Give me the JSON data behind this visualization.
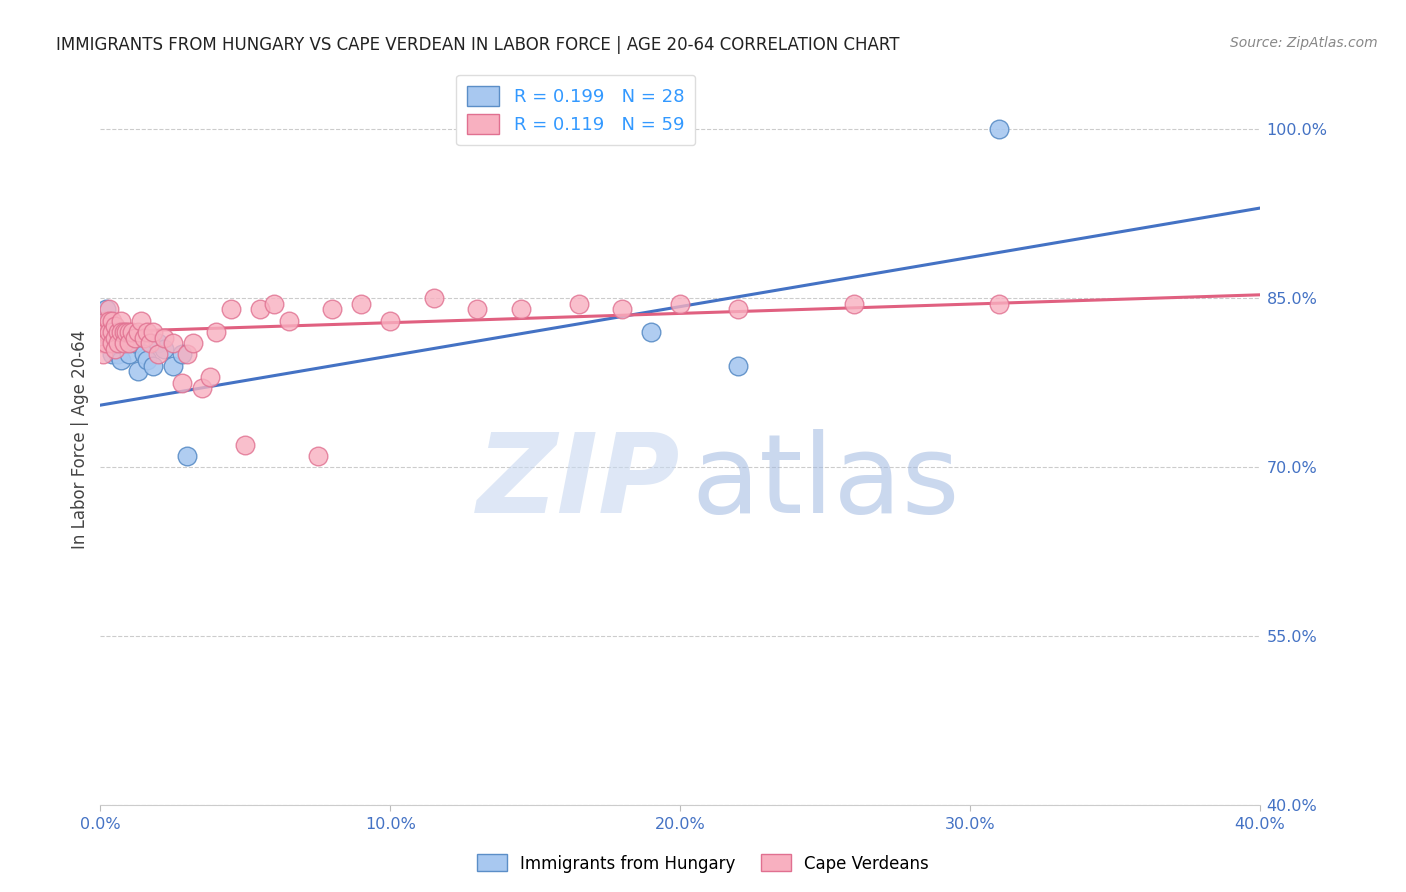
{
  "title": "IMMIGRANTS FROM HUNGARY VS CAPE VERDEAN IN LABOR FORCE | AGE 20-64 CORRELATION CHART",
  "source_text": "Source: ZipAtlas.com",
  "ylabel": "In Labor Force | Age 20-64",
  "xlim": [
    0.0,
    0.4
  ],
  "ylim": [
    0.4,
    1.05
  ],
  "ytick_values": [
    0.4,
    0.55,
    0.7,
    0.85,
    1.0
  ],
  "xtick_values": [
    0.0,
    0.1,
    0.2,
    0.3,
    0.4
  ],
  "hungary_color": "#a8c8f0",
  "hungary_edge_color": "#5b8ec7",
  "cape_verde_color": "#f8b0c0",
  "cape_verde_edge_color": "#e07090",
  "hungary_R": 0.199,
  "hungary_N": 28,
  "cape_verde_R": 0.119,
  "cape_verde_N": 59,
  "line_hungary_color": "#4472c4",
  "line_cape_verde_color": "#e06080",
  "legend_r_color": "#3399ff",
  "legend_n_color": "#3399ff",
  "tick_color": "#4472c4",
  "watermark_zip_color": "#c8d8f0",
  "watermark_atlas_color": "#a0b8e0",
  "hungary_x": [
    0.001,
    0.002,
    0.003,
    0.003,
    0.004,
    0.004,
    0.005,
    0.005,
    0.006,
    0.006,
    0.007,
    0.008,
    0.009,
    0.01,
    0.01,
    0.012,
    0.013,
    0.015,
    0.016,
    0.018,
    0.02,
    0.022,
    0.025,
    0.028,
    0.03,
    0.19,
    0.22,
    0.31
  ],
  "hungary_y": [
    0.82,
    0.84,
    0.815,
    0.825,
    0.8,
    0.81,
    0.82,
    0.815,
    0.81,
    0.8,
    0.795,
    0.81,
    0.815,
    0.81,
    0.8,
    0.81,
    0.785,
    0.8,
    0.795,
    0.79,
    0.81,
    0.805,
    0.79,
    0.8,
    0.71,
    0.82,
    0.79,
    1.0
  ],
  "cape_verde_x": [
    0.001,
    0.001,
    0.001,
    0.002,
    0.002,
    0.002,
    0.003,
    0.003,
    0.003,
    0.004,
    0.004,
    0.004,
    0.005,
    0.005,
    0.005,
    0.006,
    0.006,
    0.007,
    0.007,
    0.008,
    0.008,
    0.009,
    0.01,
    0.01,
    0.011,
    0.012,
    0.013,
    0.014,
    0.015,
    0.016,
    0.017,
    0.018,
    0.02,
    0.022,
    0.025,
    0.028,
    0.03,
    0.032,
    0.035,
    0.038,
    0.04,
    0.045,
    0.05,
    0.055,
    0.06,
    0.065,
    0.075,
    0.08,
    0.09,
    0.1,
    0.115,
    0.13,
    0.145,
    0.165,
    0.18,
    0.2,
    0.22,
    0.26,
    0.31
  ],
  "cape_verde_y": [
    0.82,
    0.81,
    0.8,
    0.83,
    0.82,
    0.81,
    0.84,
    0.83,
    0.82,
    0.83,
    0.82,
    0.81,
    0.825,
    0.815,
    0.805,
    0.82,
    0.81,
    0.83,
    0.82,
    0.82,
    0.81,
    0.82,
    0.82,
    0.81,
    0.82,
    0.815,
    0.82,
    0.83,
    0.815,
    0.82,
    0.81,
    0.82,
    0.8,
    0.815,
    0.81,
    0.775,
    0.8,
    0.81,
    0.77,
    0.78,
    0.82,
    0.84,
    0.72,
    0.84,
    0.845,
    0.83,
    0.71,
    0.84,
    0.845,
    0.83,
    0.85,
    0.84,
    0.84,
    0.845,
    0.84,
    0.845,
    0.84,
    0.845,
    0.845
  ]
}
